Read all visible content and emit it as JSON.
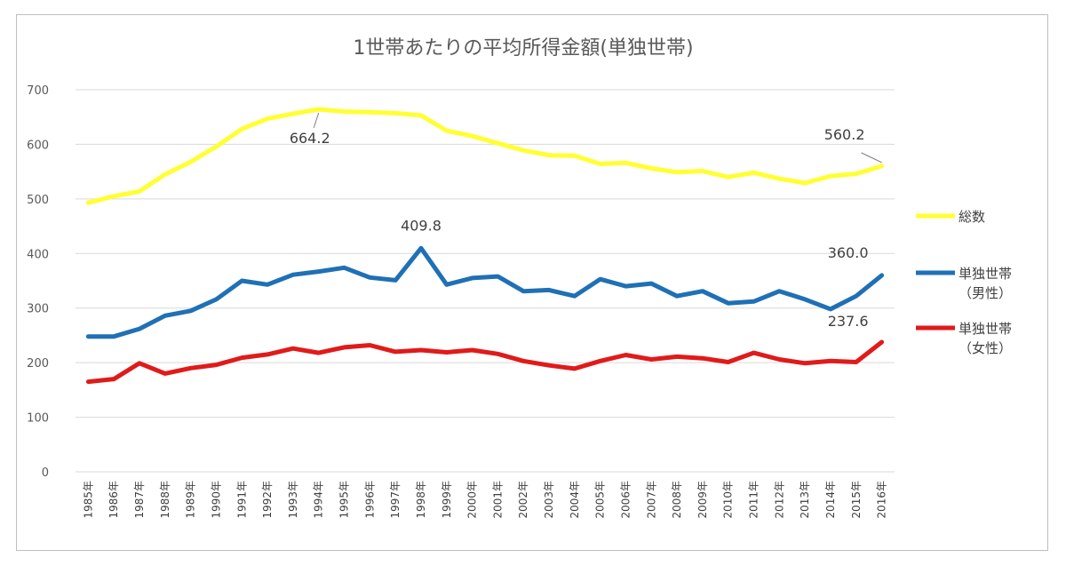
{
  "chart_data": {
    "type": "line",
    "title": "1世帯あたりの平均所得金額(単独世帯)",
    "xlabel": "",
    "ylabel": "",
    "ylim": [
      0,
      700
    ],
    "yticks": [
      0,
      100,
      200,
      300,
      400,
      500,
      600,
      700
    ],
    "grid": true,
    "legend_position": "right",
    "categories": [
      "1985年",
      "1986年",
      "1987年",
      "1988年",
      "1989年",
      "1990年",
      "1991年",
      "1992年",
      "1993年",
      "1994年",
      "1995年",
      "1996年",
      "1997年",
      "1998年",
      "1999年",
      "2000年",
      "2001年",
      "2002年",
      "2003年",
      "2004年",
      "2005年",
      "2006年",
      "2007年",
      "2008年",
      "2009年",
      "2010年",
      "2011年",
      "2012年",
      "2013年",
      "2014年",
      "2015年",
      "2016年"
    ],
    "series": [
      {
        "name": "総数",
        "color": "#ffff33",
        "values": [
          493,
          505,
          514,
          545,
          568,
          596,
          628,
          647,
          656,
          664.2,
          660,
          659,
          657,
          653,
          625,
          615,
          602,
          589,
          580,
          579,
          564,
          566,
          556,
          549,
          551,
          540,
          548,
          537,
          529,
          542,
          546,
          560.2
        ]
      },
      {
        "name": "単独世帯(男性)",
        "name_lines": [
          "単独世帯",
          "（男性）"
        ],
        "color": "#1f70b5",
        "values": [
          248,
          248,
          262,
          286,
          295,
          316,
          350,
          343,
          361,
          367,
          374,
          356,
          351,
          409.8,
          343,
          355,
          358,
          331,
          333,
          322,
          353,
          340,
          345,
          322,
          331,
          309,
          312,
          331,
          316,
          298,
          322,
          360.0
        ]
      },
      {
        "name": "単独世帯(女性)",
        "name_lines": [
          "単独世帯",
          "（女性）"
        ],
        "color": "#e11a1a",
        "values": [
          165,
          170,
          199,
          180,
          190,
          196,
          209,
          215,
          226,
          218,
          228,
          232,
          220,
          223,
          219,
          223,
          216,
          203,
          195,
          189,
          203,
          214,
          206,
          211,
          208,
          201,
          218,
          206,
          199,
          203,
          201,
          237.6
        ]
      }
    ],
    "annotations": [
      {
        "text": "664.2",
        "series": 0,
        "index": 9
      },
      {
        "text": "560.2",
        "series": 0,
        "index": 31
      },
      {
        "text": "409.8",
        "series": 1,
        "index": 13
      },
      {
        "text": "360.0",
        "series": 1,
        "index": 31
      },
      {
        "text": "237.6",
        "series": 2,
        "index": 31
      }
    ]
  }
}
